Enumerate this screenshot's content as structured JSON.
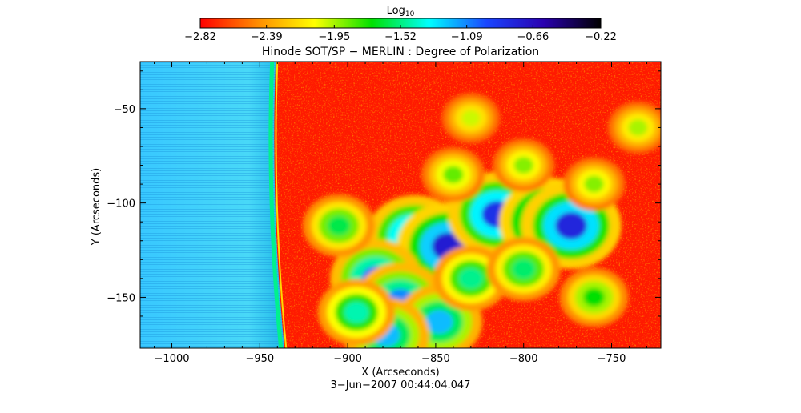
{
  "chart_data": {
    "type": "heatmap",
    "title": "Hinode SOT/SP − MERLIN : Degree of Polarization",
    "xlabel": "X (Arcseconds)",
    "ylabel": "Y (Arcseconds)",
    "timestamp": "3−Jun−2007 00:44:04.047",
    "xlim": [
      -1018,
      -722
    ],
    "ylim": [
      -177,
      -25
    ],
    "x_ticks": [
      -1000,
      -950,
      -900,
      -850,
      -800,
      -750
    ],
    "x_tick_labels": [
      "−1000",
      "−950",
      "−900",
      "−850",
      "−800",
      "−750"
    ],
    "y_ticks": [
      -50,
      -100,
      -150
    ],
    "y_tick_labels": [
      "−50",
      "−100",
      "−150"
    ],
    "colorbar": {
      "label_main": "Log",
      "label_sub": "10",
      "min": -2.82,
      "max": -0.22,
      "tick_values": [
        -2.82,
        -2.39,
        -1.95,
        -1.52,
        -1.09,
        -0.66,
        -0.22
      ],
      "tick_labels": [
        "−2.82",
        "−2.39",
        "−1.95",
        "−1.52",
        "−1.09",
        "−0.66",
        "−0.22"
      ],
      "colormap": [
        "#ff0000",
        "#ff8c00",
        "#ffff00",
        "#00e000",
        "#00ffff",
        "#1a46ff",
        "#2a00b0",
        "#000000"
      ]
    },
    "regions": {
      "off_limb_mean": -1.2,
      "limb_edge_mean": -1.5,
      "disk_background_mean": -2.7,
      "patches": [
        {
          "x": -862,
          "y": -118,
          "value": -0.9
        },
        {
          "x": -843,
          "y": -123,
          "value": -0.75
        },
        {
          "x": -815,
          "y": -106,
          "value": -0.85
        },
        {
          "x": -785,
          "y": -110,
          "value": -0.75
        },
        {
          "x": -773,
          "y": -112,
          "value": -0.8
        },
        {
          "x": -884,
          "y": -140,
          "value": -1.05
        },
        {
          "x": -870,
          "y": -152,
          "value": -1.1
        },
        {
          "x": -848,
          "y": -163,
          "value": -1.2
        },
        {
          "x": -878,
          "y": -170,
          "value": -1.2
        },
        {
          "x": -895,
          "y": -158,
          "value": -1.45
        },
        {
          "x": -905,
          "y": -112,
          "value": -1.6
        },
        {
          "x": -830,
          "y": -140,
          "value": -1.5
        },
        {
          "x": -800,
          "y": -135,
          "value": -1.55
        },
        {
          "x": -760,
          "y": -150,
          "value": -1.7
        },
        {
          "x": -840,
          "y": -85,
          "value": -1.85
        },
        {
          "x": -800,
          "y": -80,
          "value": -1.9
        },
        {
          "x": -760,
          "y": -90,
          "value": -1.9
        },
        {
          "x": -735,
          "y": -60,
          "value": -1.95
        },
        {
          "x": -830,
          "y": -55,
          "value": -2.0
        }
      ]
    }
  }
}
